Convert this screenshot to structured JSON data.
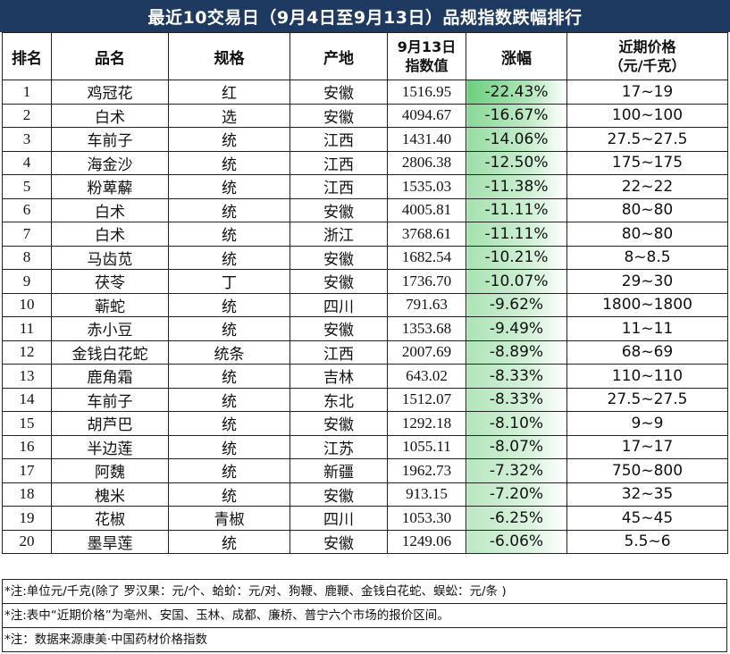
{
  "title": "最近10交易日（9月4日至9月13日）品规指数跌幅排行",
  "headers": {
    "rank": "排名",
    "name": "品名",
    "spec": "规格",
    "origin": "产地",
    "index_line1": "9月13日",
    "index_line2": "指数值",
    "change": "涨幅",
    "price_line1": "近期价格",
    "price_line2": "（元/千克）"
  },
  "rows": [
    {
      "rank": "1",
      "name": "鸡冠花",
      "spec": "红",
      "origin": "安徽",
      "index": "1516.95",
      "change": "-22.43%",
      "change_value": -22.43,
      "price": "17~19"
    },
    {
      "rank": "2",
      "name": "白术",
      "spec": "选",
      "origin": "安徽",
      "index": "4094.67",
      "change": "-16.67%",
      "change_value": -16.67,
      "price": "100~100"
    },
    {
      "rank": "3",
      "name": "车前子",
      "spec": "统",
      "origin": "江西",
      "index": "1431.40",
      "change": "-14.06%",
      "change_value": -14.06,
      "price": "27.5~27.5"
    },
    {
      "rank": "4",
      "name": "海金沙",
      "spec": "统",
      "origin": "江西",
      "index": "2806.38",
      "change": "-12.50%",
      "change_value": -12.5,
      "price": "175~175"
    },
    {
      "rank": "5",
      "name": "粉萆薢",
      "spec": "统",
      "origin": "江西",
      "index": "1535.03",
      "change": "-11.38%",
      "change_value": -11.38,
      "price": "22~22"
    },
    {
      "rank": "6",
      "name": "白术",
      "spec": "统",
      "origin": "安徽",
      "index": "4005.81",
      "change": "-11.11%",
      "change_value": -11.11,
      "price": "80~80"
    },
    {
      "rank": "7",
      "name": "白术",
      "spec": "统",
      "origin": "浙江",
      "index": "3768.61",
      "change": "-11.11%",
      "change_value": -11.11,
      "price": "80~80"
    },
    {
      "rank": "8",
      "name": "马齿苋",
      "spec": "统",
      "origin": "安徽",
      "index": "1682.54",
      "change": "-10.21%",
      "change_value": -10.21,
      "price": "8~8.5"
    },
    {
      "rank": "9",
      "name": "茯苓",
      "spec": "丁",
      "origin": "安徽",
      "index": "1736.70",
      "change": "-10.07%",
      "change_value": -10.07,
      "price": "29~30"
    },
    {
      "rank": "10",
      "name": "蕲蛇",
      "spec": "统",
      "origin": "四川",
      "index": "791.63",
      "change": "-9.62%",
      "change_value": -9.62,
      "price": "1800~1800"
    },
    {
      "rank": "11",
      "name": "赤小豆",
      "spec": "统",
      "origin": "安徽",
      "index": "1353.68",
      "change": "-9.49%",
      "change_value": -9.49,
      "price": "11~11"
    },
    {
      "rank": "12",
      "name": "金钱白花蛇",
      "spec": "统条",
      "origin": "江西",
      "index": "2007.69",
      "change": "-8.89%",
      "change_value": -8.89,
      "price": "68~69"
    },
    {
      "rank": "13",
      "name": "鹿角霜",
      "spec": "统",
      "origin": "吉林",
      "index": "643.02",
      "change": "-8.33%",
      "change_value": -8.33,
      "price": "110~110"
    },
    {
      "rank": "14",
      "name": "车前子",
      "spec": "统",
      "origin": "东北",
      "index": "1512.07",
      "change": "-8.33%",
      "change_value": -8.33,
      "price": "27.5~27.5"
    },
    {
      "rank": "15",
      "name": "胡芦巴",
      "spec": "统",
      "origin": "安徽",
      "index": "1292.18",
      "change": "-8.10%",
      "change_value": -8.1,
      "price": "9~9"
    },
    {
      "rank": "16",
      "name": "半边莲",
      "spec": "统",
      "origin": "江苏",
      "index": "1055.11",
      "change": "-8.07%",
      "change_value": -8.07,
      "price": "17~17"
    },
    {
      "rank": "17",
      "name": "阿魏",
      "spec": "统",
      "origin": "新疆",
      "index": "1962.73",
      "change": "-7.32%",
      "change_value": -7.32,
      "price": "750~800"
    },
    {
      "rank": "18",
      "name": "槐米",
      "spec": "统",
      "origin": "安徽",
      "index": "913.15",
      "change": "-7.20%",
      "change_value": -7.2,
      "price": "32~35"
    },
    {
      "rank": "19",
      "name": "花椒",
      "spec": "青椒",
      "origin": "四川",
      "index": "1053.30",
      "change": "-6.25%",
      "change_value": -6.25,
      "price": "45~45"
    },
    {
      "rank": "20",
      "name": "墨旱莲",
      "spec": "统",
      "origin": "安徽",
      "index": "1249.06",
      "change": "-6.06%",
      "change_value": -6.06,
      "price": "5.5~6"
    }
  ],
  "notes": [
    "*注:单位元/千克(除了 罗汉果：元/个、蛤蚧：元/对、狗鞭、鹿鞭、金钱白花蛇、蜈蚣：元/条 )",
    "*注:表中“近期价格”为亳州、安国、玉林、成都、廉桥、普宁六个市场的报价区间。",
    "*注：数据来源康美·中国药材价格指数"
  ],
  "colors": {
    "title_bg": "#1f3a60",
    "title_text": "#ffffff",
    "heat_strong": "#6ccf7e",
    "heat_weak": "#e9f6ea"
  }
}
